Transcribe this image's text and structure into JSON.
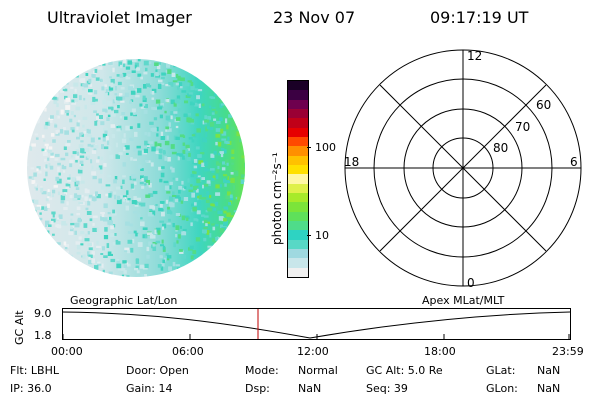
{
  "header": {
    "instrument": "Ultraviolet Imager",
    "date": "23 Nov 07",
    "time": "09:17:19 UT"
  },
  "colorbar": {
    "unit_label": "photon cm⁻²s⁻¹",
    "tick_labels": [
      "100",
      "10"
    ],
    "colors": [
      "#f0f0f0",
      "#c8e6ea",
      "#9fd9e0",
      "#58d8c6",
      "#2ed3c2",
      "#4fdc8a",
      "#5fe05a",
      "#7be43a",
      "#a7ea2a",
      "#dff04a",
      "#fff7a5",
      "#ffe000",
      "#ffc100",
      "#ff8f00",
      "#ff4a00",
      "#e60000",
      "#c00018",
      "#9a0034",
      "#6e004e",
      "#3b0042",
      "#1a0026"
    ]
  },
  "polar_grid": {
    "mlt_labels": {
      "top": "12",
      "left": "18",
      "right": "6",
      "bottom": "0"
    },
    "lat_labels": [
      "60",
      "70",
      "80"
    ]
  },
  "track": {
    "axis_label": "GC Alt",
    "y_labels": [
      "9.0",
      "1.8"
    ],
    "left_title": "Geographic Lat/Lon",
    "right_title": "Apex MLat/MLT",
    "time_ticks": [
      "00:00",
      "06:00",
      "12:00",
      "18:00",
      "23:59"
    ]
  },
  "info": {
    "row1": {
      "flt": "Flt: LBHL",
      "door": "Door: Open",
      "mode_label": "Mode:",
      "mode_value": "Normal",
      "gcalt": "GC Alt: 5.0 Re",
      "glat_label": "GLat:",
      "glat_value": "NaN"
    },
    "row2": {
      "ip": "IP: 36.0",
      "gain": "Gain: 14",
      "dsp_label": "Dsp:",
      "dsp_value": "NaN",
      "seq": "Seq: 39",
      "glon_label": "GLon:",
      "glon_value": "NaN"
    }
  }
}
